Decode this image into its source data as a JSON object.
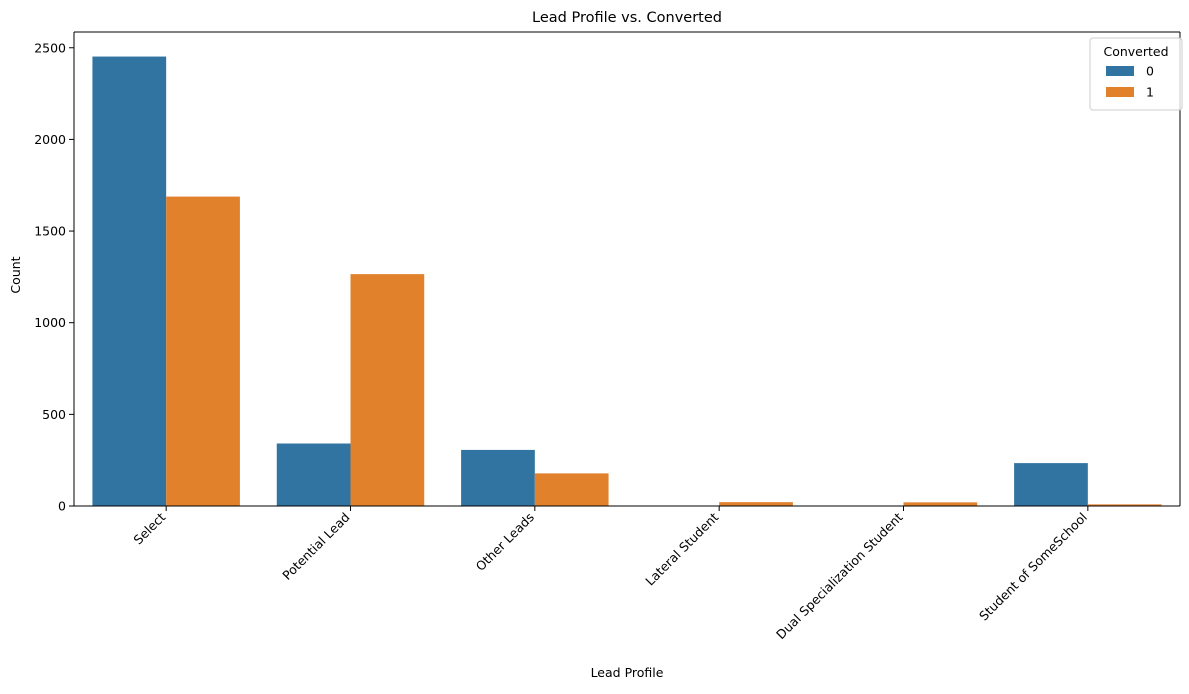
{
  "chart_data": {
    "type": "bar",
    "title": "Lead Profile vs. Converted",
    "xlabel": "Lead Profile",
    "ylabel": "Count",
    "categories": [
      "Select",
      "Potential Lead",
      "Other Leads",
      "Lateral Student",
      "Dual Specialization Student",
      "Student of SomeSchool"
    ],
    "series": [
      {
        "name": "0",
        "color": "#3274a1",
        "values": [
          2452,
          341,
          306,
          0,
          0,
          234
        ]
      },
      {
        "name": "1",
        "color": "#e1812c",
        "values": [
          1688,
          1265,
          178,
          21,
          20,
          9
        ]
      }
    ],
    "ylim": [
      0,
      2586
    ],
    "yticks": [
      0,
      500,
      1000,
      1500,
      2000,
      2500
    ],
    "legend": {
      "title": "Converted",
      "position": "top-right"
    },
    "grid": false
  }
}
